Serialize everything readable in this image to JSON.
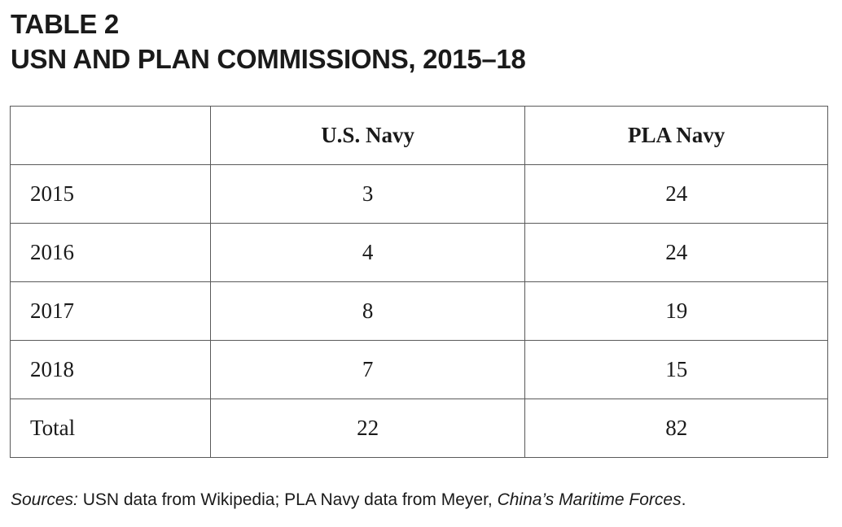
{
  "heading": {
    "line1": "TABLE 2",
    "line2": "USN AND PLAN COMMISSIONS, 2015–18"
  },
  "table": {
    "columns": [
      "",
      "U.S. Navy",
      "PLA Navy"
    ],
    "rows": [
      {
        "label": "2015",
        "usn": "3",
        "plan": "24"
      },
      {
        "label": "2016",
        "usn": "4",
        "plan": "24"
      },
      {
        "label": "2017",
        "usn": "8",
        "plan": "19"
      },
      {
        "label": "2018",
        "usn": "7",
        "plan": "15"
      },
      {
        "label": "Total",
        "usn": "22",
        "plan": "82"
      }
    ]
  },
  "sources": {
    "prefix": "Sources:",
    "text": " USN data from Wikipedia; PLA Navy data from Meyer, ",
    "title": "China’s Maritime Forces",
    "suffix": "."
  }
}
